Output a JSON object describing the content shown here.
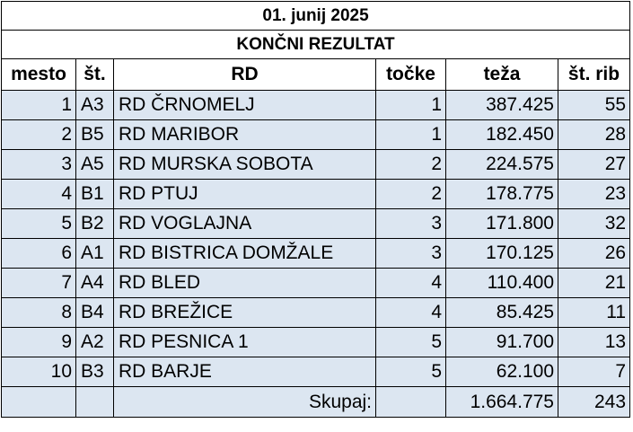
{
  "date_title": "01. junij 2025",
  "result_title": "KONČNI REZULTAT",
  "columns": [
    "mesto",
    "št.",
    "RD",
    "točke",
    "teža",
    "št. rib"
  ],
  "rows": [
    {
      "mesto": "1",
      "st": "A3",
      "rd": "RD ČRNOMELJ",
      "tocke": "1",
      "teza": "387.425",
      "st_rib": "55"
    },
    {
      "mesto": "2",
      "st": "B5",
      "rd": "RD MARIBOR",
      "tocke": "1",
      "teza": "182.450",
      "st_rib": "28"
    },
    {
      "mesto": "3",
      "st": "A5",
      "rd": "RD MURSKA SOBOTA",
      "tocke": "2",
      "teza": "224.575",
      "st_rib": "27"
    },
    {
      "mesto": "4",
      "st": "B1",
      "rd": "RD PTUJ",
      "tocke": "2",
      "teza": "178.775",
      "st_rib": "23"
    },
    {
      "mesto": "5",
      "st": "B2",
      "rd": "RD VOGLAJNA",
      "tocke": "3",
      "teza": "171.800",
      "st_rib": "32"
    },
    {
      "mesto": "6",
      "st": "A1",
      "rd": "RD BISTRICA DOMŽALE",
      "tocke": "3",
      "teza": "170.125",
      "st_rib": "26"
    },
    {
      "mesto": "7",
      "st": "A4",
      "rd": "RD BLED",
      "tocke": "4",
      "teza": "110.400",
      "st_rib": "21"
    },
    {
      "mesto": "8",
      "st": "B4",
      "rd": "RD BREŽICE",
      "tocke": "4",
      "teza": "85.425",
      "st_rib": "11"
    },
    {
      "mesto": "9",
      "st": "A2",
      "rd": "RD PESNICA 1",
      "tocke": "5",
      "teza": "91.700",
      "st_rib": "13"
    },
    {
      "mesto": "10",
      "st": "B3",
      "rd": "RD BARJE",
      "tocke": "5",
      "teza": "62.100",
      "st_rib": "7"
    }
  ],
  "total": {
    "label": "Skupaj:",
    "teza": "1.664.775",
    "st_rib": "243"
  },
  "colors": {
    "row_fill": "#dce6f1",
    "header_fill": "#ffffff",
    "border": "#000000"
  }
}
